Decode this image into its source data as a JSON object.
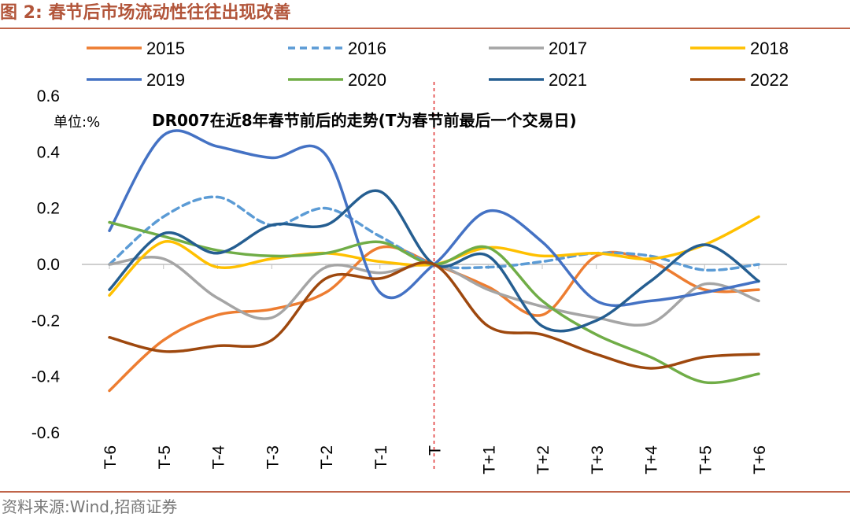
{
  "figure": {
    "label": "图 2:",
    "title": "春节后市场流动性往往出现改善"
  },
  "source": "资料来源:Wind,招商证券",
  "chart_data": {
    "type": "line",
    "title": "DR007在近8年春节前后的走势(T为春节前最后一个交易日)",
    "unit_label": "单位:%",
    "xlabel": "",
    "ylabel": "",
    "ylim": [
      -0.6,
      0.6
    ],
    "yticks": [
      "0.6",
      "0.4",
      "0.2",
      "0.0",
      "-0.2",
      "-0.4",
      "-0.6"
    ],
    "categories": [
      "T-6",
      "T-5",
      "T-4",
      "T-3",
      "T-2",
      "T-1",
      "T",
      "T+1",
      "T+2",
      "T+3",
      "T+4",
      "T+5",
      "T+6"
    ],
    "reference_line": {
      "category": "T",
      "color": "#e03030",
      "style": "dashed"
    },
    "legend_position": "top",
    "series": [
      {
        "name": "2015",
        "color": "#ed7d31",
        "dash": false,
        "values": [
          -0.45,
          -0.27,
          -0.18,
          -0.16,
          -0.1,
          0.06,
          0.0,
          -0.08,
          -0.18,
          0.03,
          0.01,
          -0.09,
          -0.09
        ]
      },
      {
        "name": "2016",
        "color": "#5b9bd5",
        "dash": true,
        "values": [
          0.0,
          0.17,
          0.24,
          0.14,
          0.2,
          0.1,
          0.0,
          -0.01,
          0.01,
          0.04,
          0.03,
          -0.02,
          0.0
        ]
      },
      {
        "name": "2017",
        "color": "#a5a5a5",
        "dash": false,
        "values": [
          0.0,
          0.02,
          -0.12,
          -0.19,
          -0.01,
          -0.03,
          0.0,
          -0.09,
          -0.15,
          -0.19,
          -0.21,
          -0.07,
          -0.13
        ]
      },
      {
        "name": "2018",
        "color": "#ffc000",
        "dash": false,
        "values": [
          -0.11,
          0.08,
          -0.01,
          0.02,
          0.04,
          0.01,
          0.0,
          0.06,
          0.03,
          0.04,
          0.02,
          0.07,
          0.17
        ]
      },
      {
        "name": "2019",
        "color": "#4472c4",
        "dash": false,
        "values": [
          0.12,
          0.46,
          0.42,
          0.38,
          0.39,
          -0.1,
          0.0,
          0.19,
          0.08,
          -0.13,
          -0.13,
          -0.1,
          -0.06
        ]
      },
      {
        "name": "2020",
        "color": "#70ad47",
        "dash": false,
        "values": [
          0.15,
          0.1,
          0.05,
          0.03,
          0.04,
          0.08,
          0.0,
          0.06,
          -0.13,
          -0.25,
          -0.33,
          -0.42,
          -0.39
        ]
      },
      {
        "name": "2021",
        "color": "#255e91",
        "dash": false,
        "values": [
          -0.09,
          0.11,
          0.04,
          0.14,
          0.14,
          0.26,
          0.0,
          0.03,
          -0.22,
          -0.2,
          -0.06,
          0.07,
          -0.06
        ]
      },
      {
        "name": "2022",
        "color": "#9e480e",
        "dash": false,
        "values": [
          -0.26,
          -0.31,
          -0.29,
          -0.27,
          -0.05,
          -0.05,
          0.0,
          -0.22,
          -0.25,
          -0.32,
          -0.37,
          -0.33,
          -0.32
        ]
      }
    ]
  }
}
